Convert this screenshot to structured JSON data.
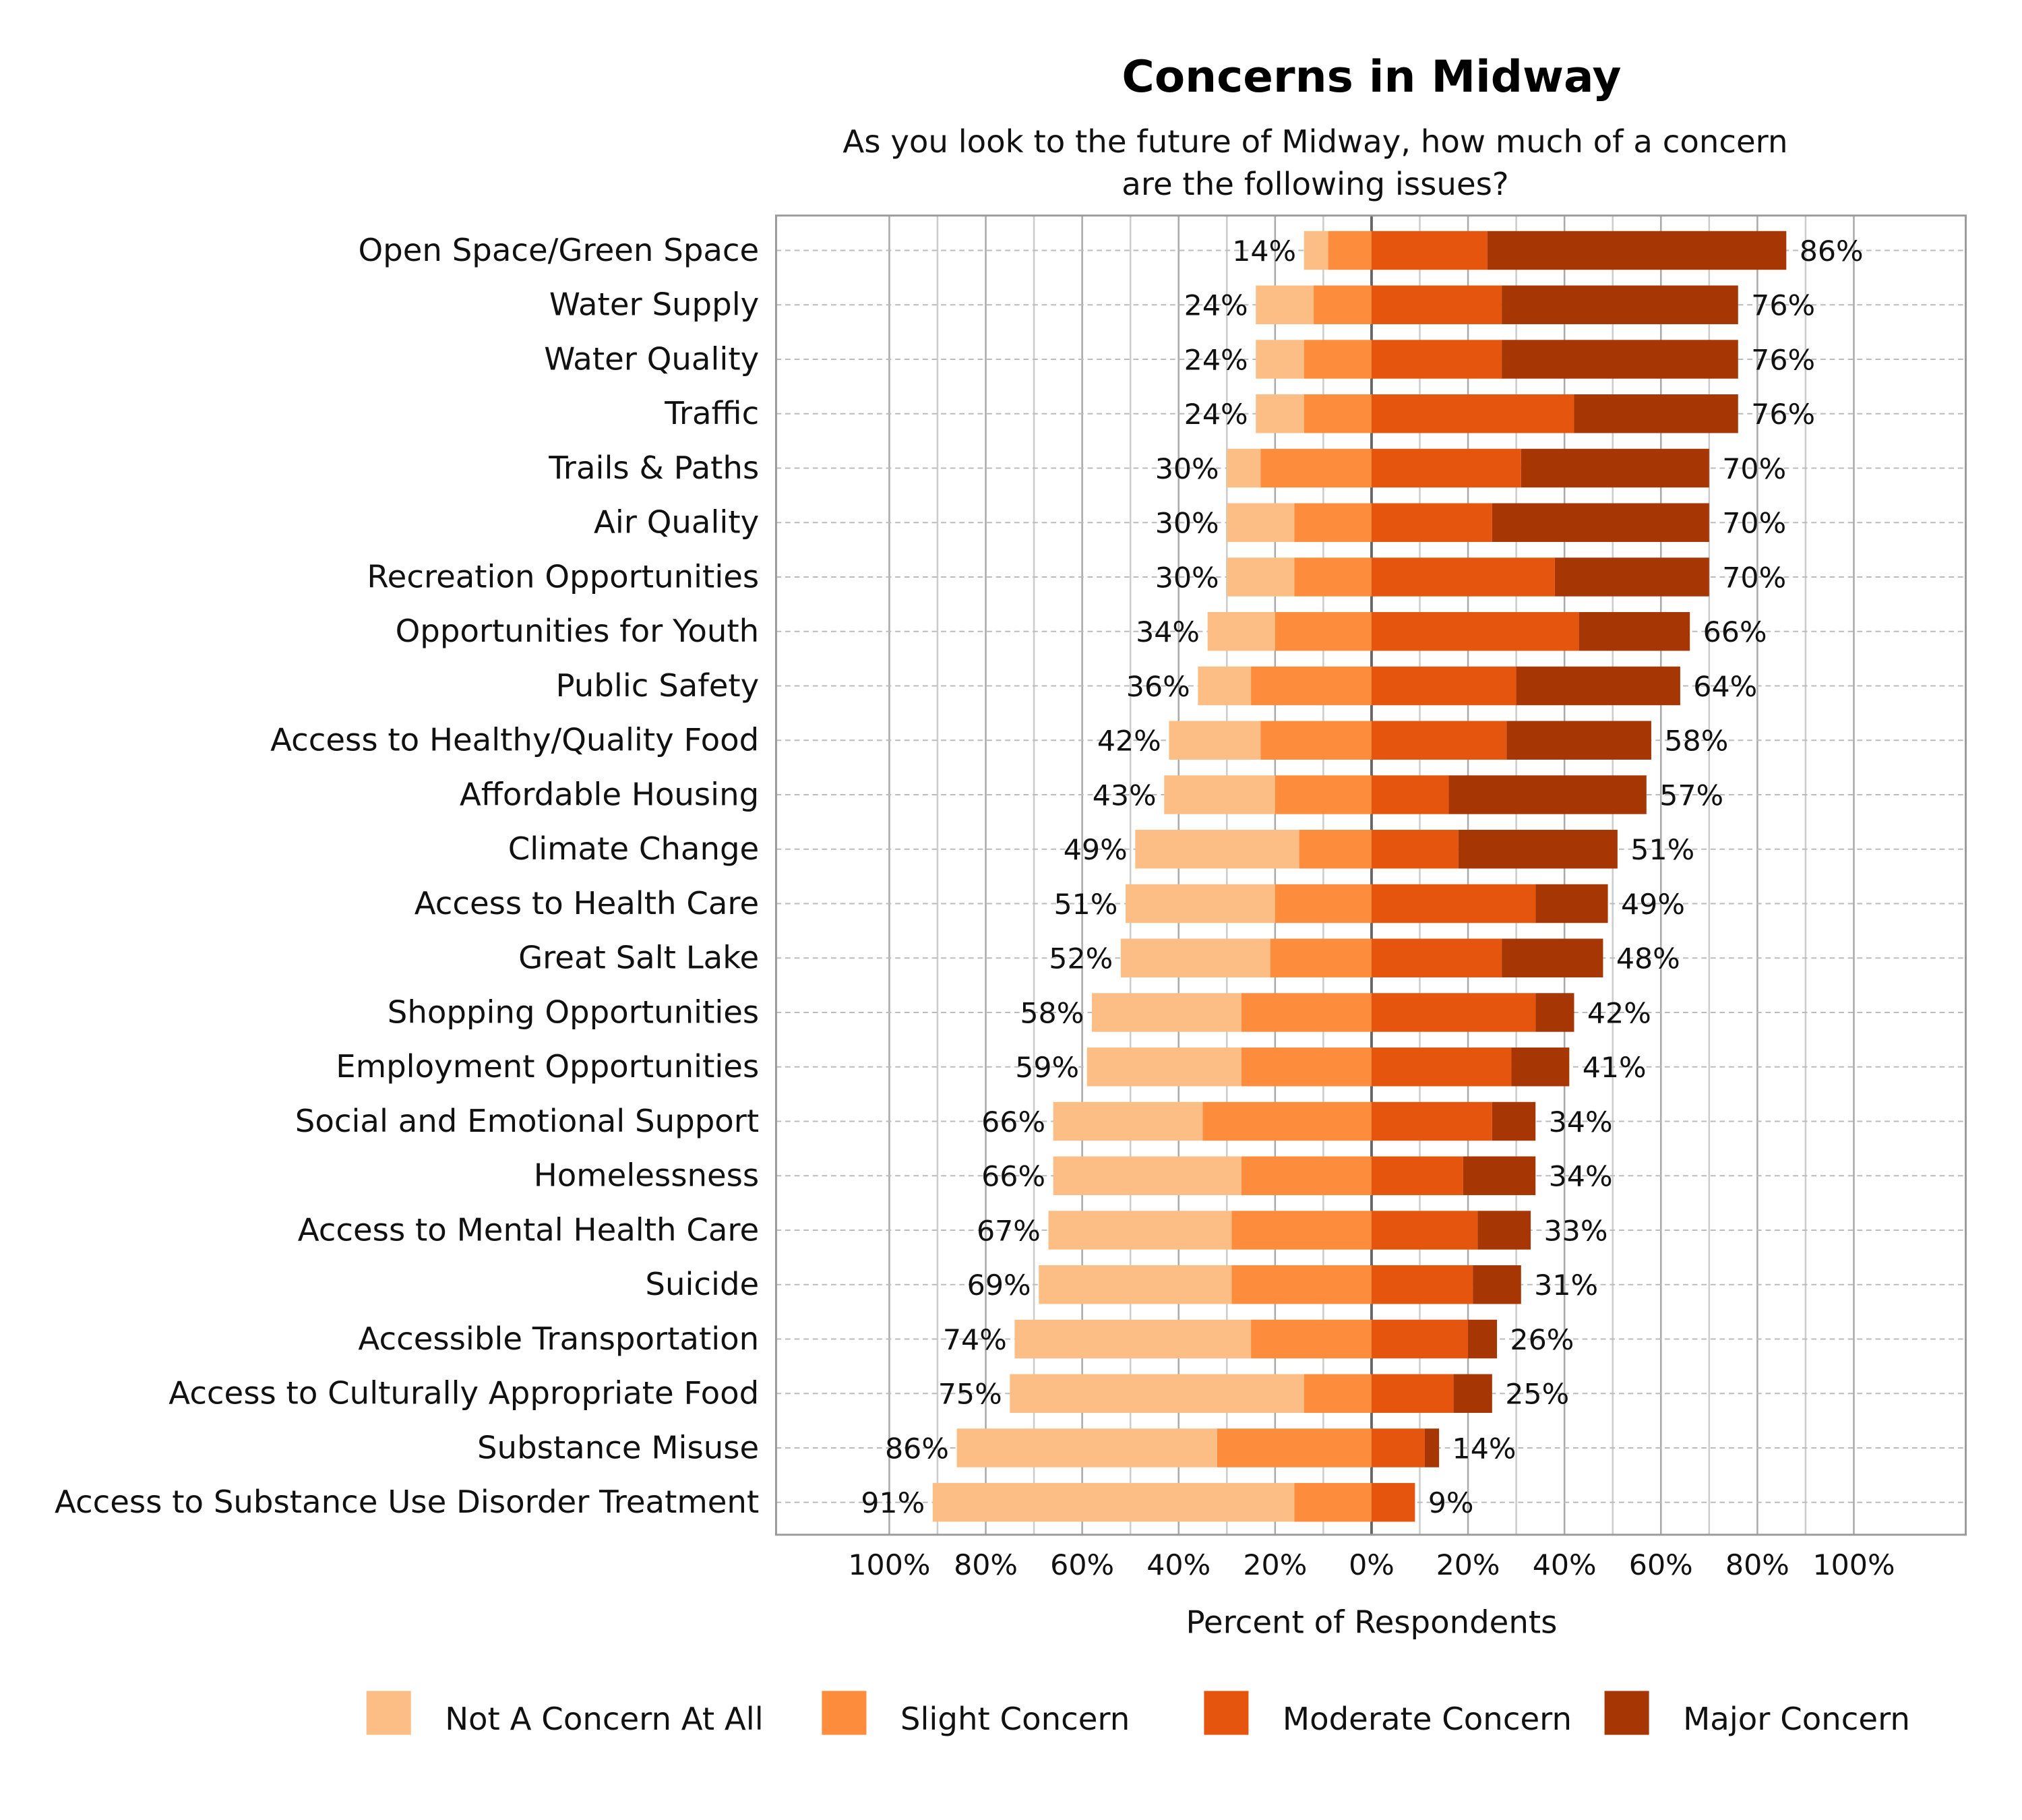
{
  "chart_data": {
    "type": "bar",
    "orientation": "horizontal-diverging-stacked",
    "title": "Concerns in Midway",
    "subtitle": [
      "As you look to the future of Midway, how much of a concern",
      "are the following issues?"
    ],
    "xlabel": "Percent of Respondents",
    "xlim": [
      -100,
      100
    ],
    "x_ticks": [
      "100%",
      "80%",
      "60%",
      "40%",
      "20%",
      "0%",
      "20%",
      "40%",
      "60%",
      "80%",
      "100%"
    ],
    "grid": true,
    "legend_position": "bottom",
    "series_colors": {
      "Not A Concern At All": "#fdbe85",
      "Slight Concern": "#fd8d3c",
      "Moderate Concern": "#e6550d",
      "Major Concern": "#a63603"
    },
    "legend": [
      "Not A Concern At All",
      "Slight Concern",
      "Moderate Concern",
      "Major Concern"
    ],
    "categories": [
      "Open Space/Green Space",
      "Water Supply",
      "Water Quality",
      "Traffic",
      "Trails & Paths",
      "Air Quality",
      "Recreation Opportunities",
      "Opportunities for Youth",
      "Public Safety",
      "Access to Healthy/Quality Food",
      "Affordable Housing",
      "Climate Change",
      "Access to Health Care",
      "Great Salt Lake",
      "Shopping Opportunities",
      "Employment Opportunities",
      "Social and Emotional Support",
      "Homelessness",
      "Access to Mental Health Care",
      "Suicide",
      "Accessible Transportation",
      "Access to Culturally Appropriate Food",
      "Substance Misuse",
      "Access to Substance Use Disorder Treatment"
    ],
    "series": [
      {
        "name": "Not A Concern At All",
        "values": [
          5,
          12,
          10,
          10,
          7,
          14,
          14,
          14,
          11,
          19,
          23,
          34,
          31,
          31,
          31,
          32,
          31,
          39,
          38,
          40,
          49,
          61,
          54,
          75
        ]
      },
      {
        "name": "Slight Concern",
        "values": [
          9,
          12,
          14,
          14,
          23,
          16,
          16,
          20,
          25,
          23,
          20,
          15,
          20,
          21,
          27,
          27,
          35,
          27,
          29,
          29,
          25,
          14,
          32,
          16
        ]
      },
      {
        "name": "Moderate Concern",
        "values": [
          24,
          27,
          27,
          42,
          31,
          25,
          38,
          43,
          30,
          28,
          16,
          18,
          34,
          27,
          34,
          29,
          25,
          19,
          22,
          21,
          20,
          17,
          11,
          9
        ]
      },
      {
        "name": "Major Concern",
        "values": [
          62,
          49,
          49,
          34,
          39,
          45,
          32,
          23,
          34,
          30,
          41,
          33,
          15,
          21,
          8,
          12,
          9,
          15,
          11,
          10,
          6,
          8,
          3,
          0
        ]
      }
    ],
    "left_totals": [
      "14%",
      "24%",
      "24%",
      "24%",
      "30%",
      "30%",
      "30%",
      "34%",
      "36%",
      "42%",
      "43%",
      "49%",
      "51%",
      "52%",
      "58%",
      "59%",
      "66%",
      "66%",
      "67%",
      "69%",
      "74%",
      "75%",
      "86%",
      "91%"
    ],
    "right_totals": [
      "86%",
      "76%",
      "76%",
      "76%",
      "70%",
      "70%",
      "70%",
      "66%",
      "64%",
      "58%",
      "57%",
      "51%",
      "49%",
      "48%",
      "42%",
      "41%",
      "34%",
      "34%",
      "33%",
      "31%",
      "26%",
      "25%",
      "14%",
      "9%"
    ]
  }
}
